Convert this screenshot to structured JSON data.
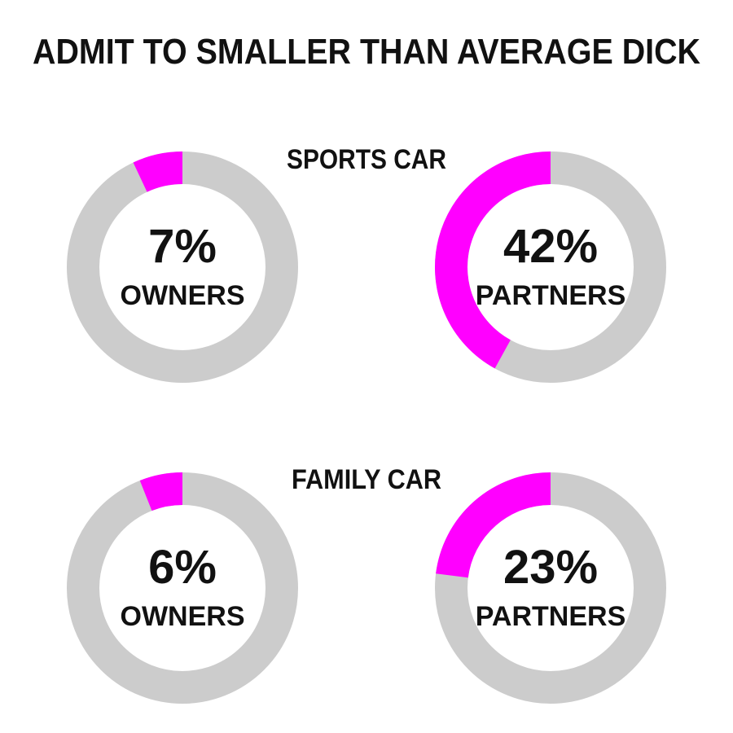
{
  "title": "ADMIT TO SMALLER THAN AVERAGE DICK",
  "colors": {
    "highlight": "#ff00ff",
    "track": "#cccccc",
    "text": "#111111"
  },
  "chart_data": {
    "type": "pie",
    "title": "ADMIT TO SMALLER THAN AVERAGE DICK",
    "groups": [
      {
        "name": "SPORTS CAR",
        "donuts": [
          {
            "value": 7,
            "value_label": "7%",
            "label": "OWNERS"
          },
          {
            "value": 42,
            "value_label": "42%",
            "label": "PARTNERS"
          }
        ]
      },
      {
        "name": "FAMILY CAR",
        "donuts": [
          {
            "value": 6,
            "value_label": "6%",
            "label": "OWNERS"
          },
          {
            "value": 23,
            "value_label": "23%",
            "label": "PARTNERS"
          }
        ]
      }
    ]
  }
}
